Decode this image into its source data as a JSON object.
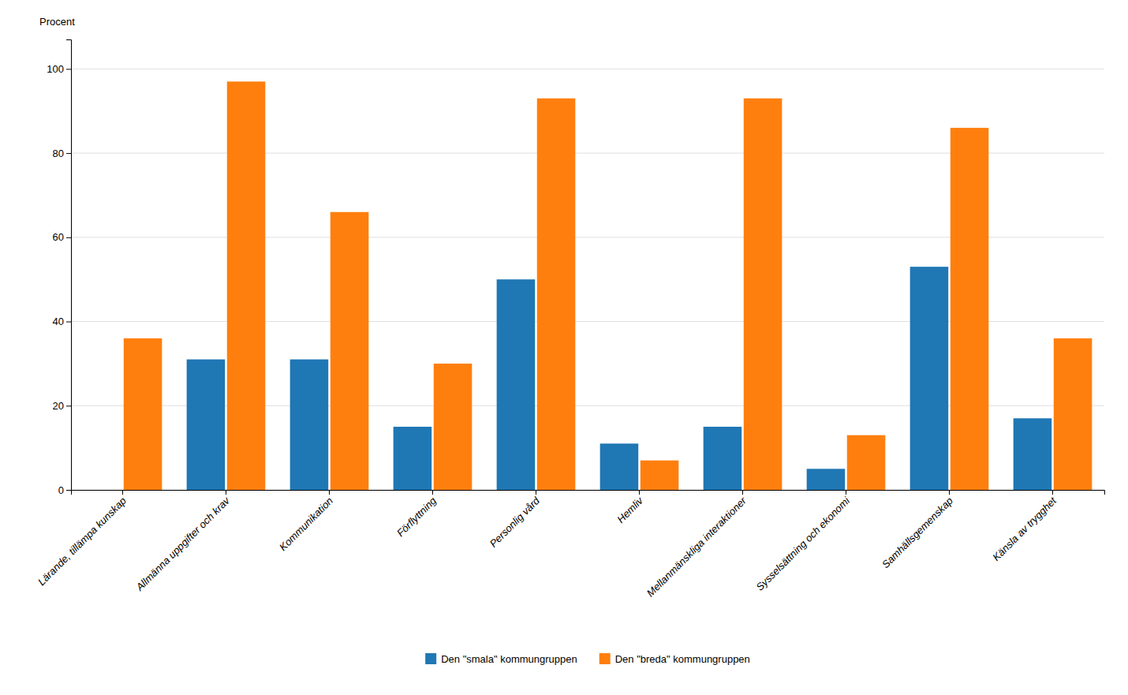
{
  "chart_data": {
    "type": "bar",
    "y_label": "Procent",
    "categories": [
      "Lärande, tillämpa kunskap",
      "Allmänna uppgifter och krav",
      "Kommunikation",
      "Förflyttning",
      "Personlig vård",
      "Hemliv",
      "Mellanmänskliga interaktioner",
      "Sysselsättning och ekonomi",
      "Samhällsgemenskap",
      "Känsla av trygghet"
    ],
    "series": [
      {
        "name": "Den \"smala\" kommungruppen",
        "values": [
          0,
          31,
          31,
          15,
          50,
          11,
          15,
          5,
          53,
          17
        ]
      },
      {
        "name": "Den \"breda\" kommungruppen",
        "values": [
          36,
          97,
          66,
          30,
          93,
          7,
          93,
          13,
          86,
          36
        ]
      }
    ],
    "ylim": [
      0,
      107
    ],
    "yticks": [
      0,
      20,
      40,
      60,
      80,
      100
    ],
    "grid": true,
    "legend": "bottom"
  }
}
